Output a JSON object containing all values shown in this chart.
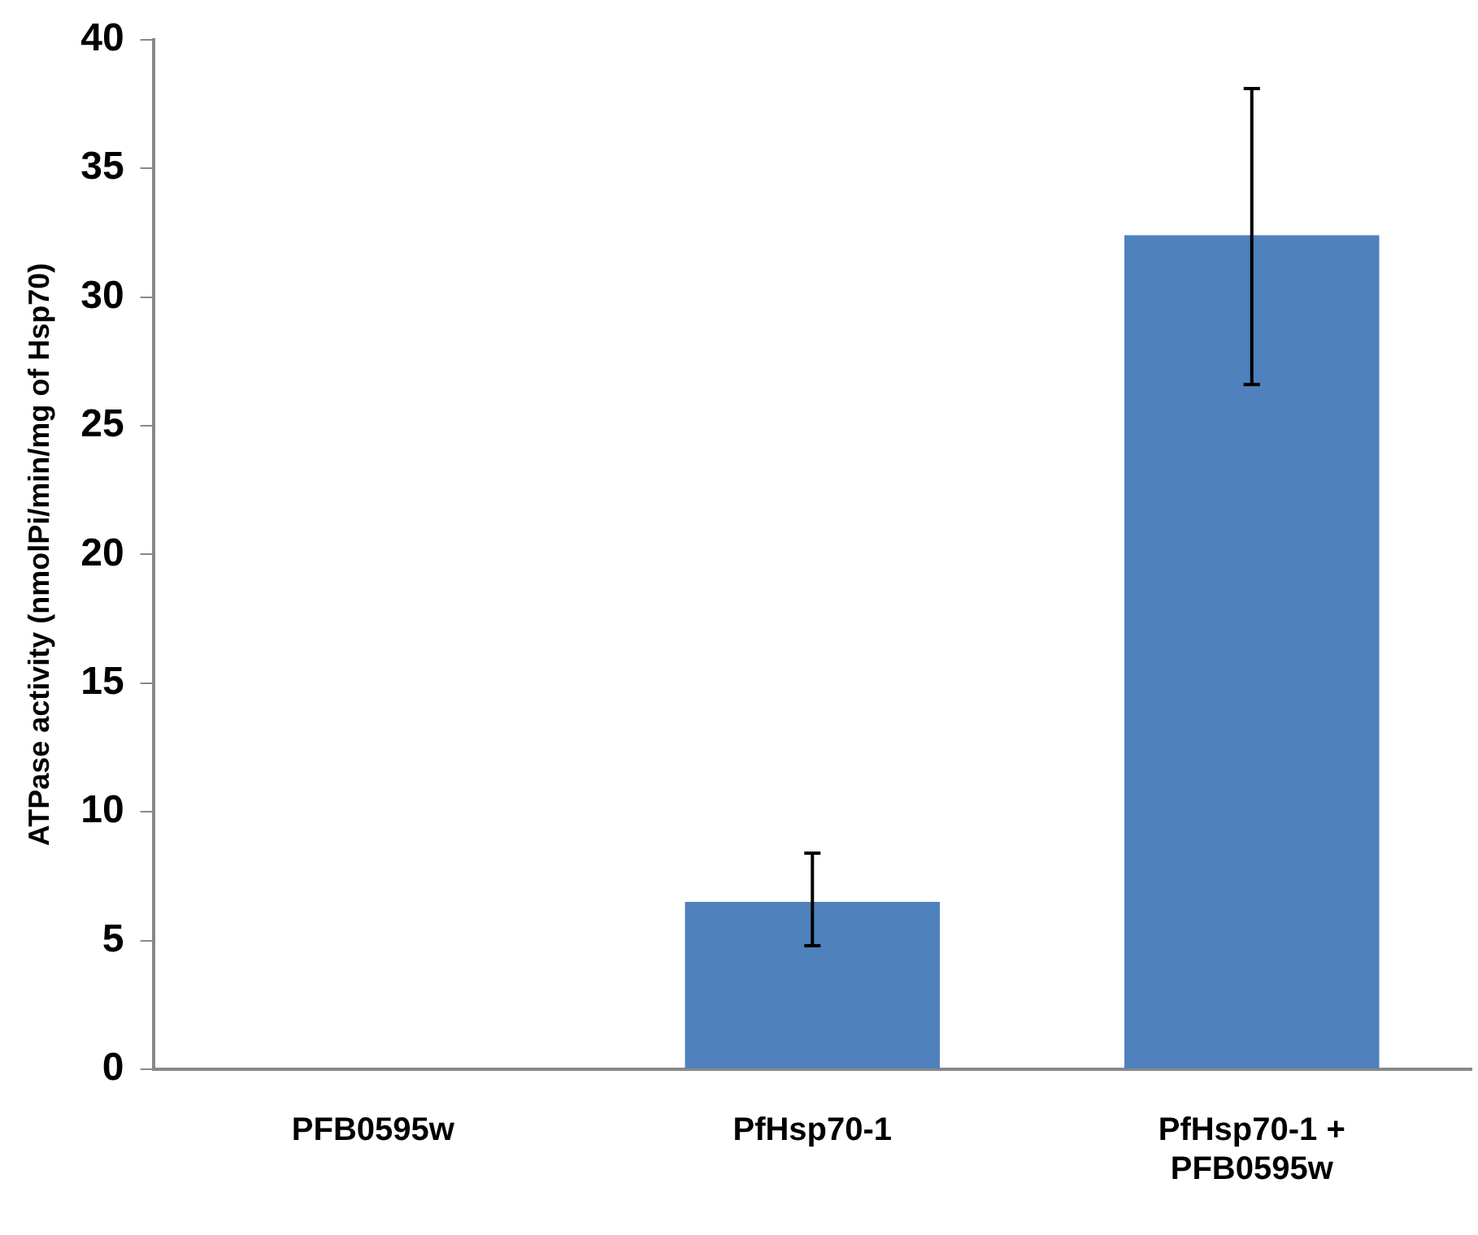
{
  "chart_data": {
    "type": "bar",
    "ylabel": "ATPase activity (nmolPi/min/mg of Hsp70)",
    "categories": [
      "PFB0595w",
      "PfHsp70-1",
      "PfHsp70-1 + PFB0595w"
    ],
    "values": [
      0,
      6.5,
      32.4
    ],
    "errors": [
      null,
      [
        4.8,
        8.4
      ],
      [
        26.6,
        38.1
      ]
    ],
    "color": "#4f81bd",
    "ylim": [
      0,
      40
    ],
    "yticks": [
      0,
      5,
      10,
      15,
      20,
      25,
      30,
      35,
      40
    ],
    "grid": false,
    "legend": false
  }
}
